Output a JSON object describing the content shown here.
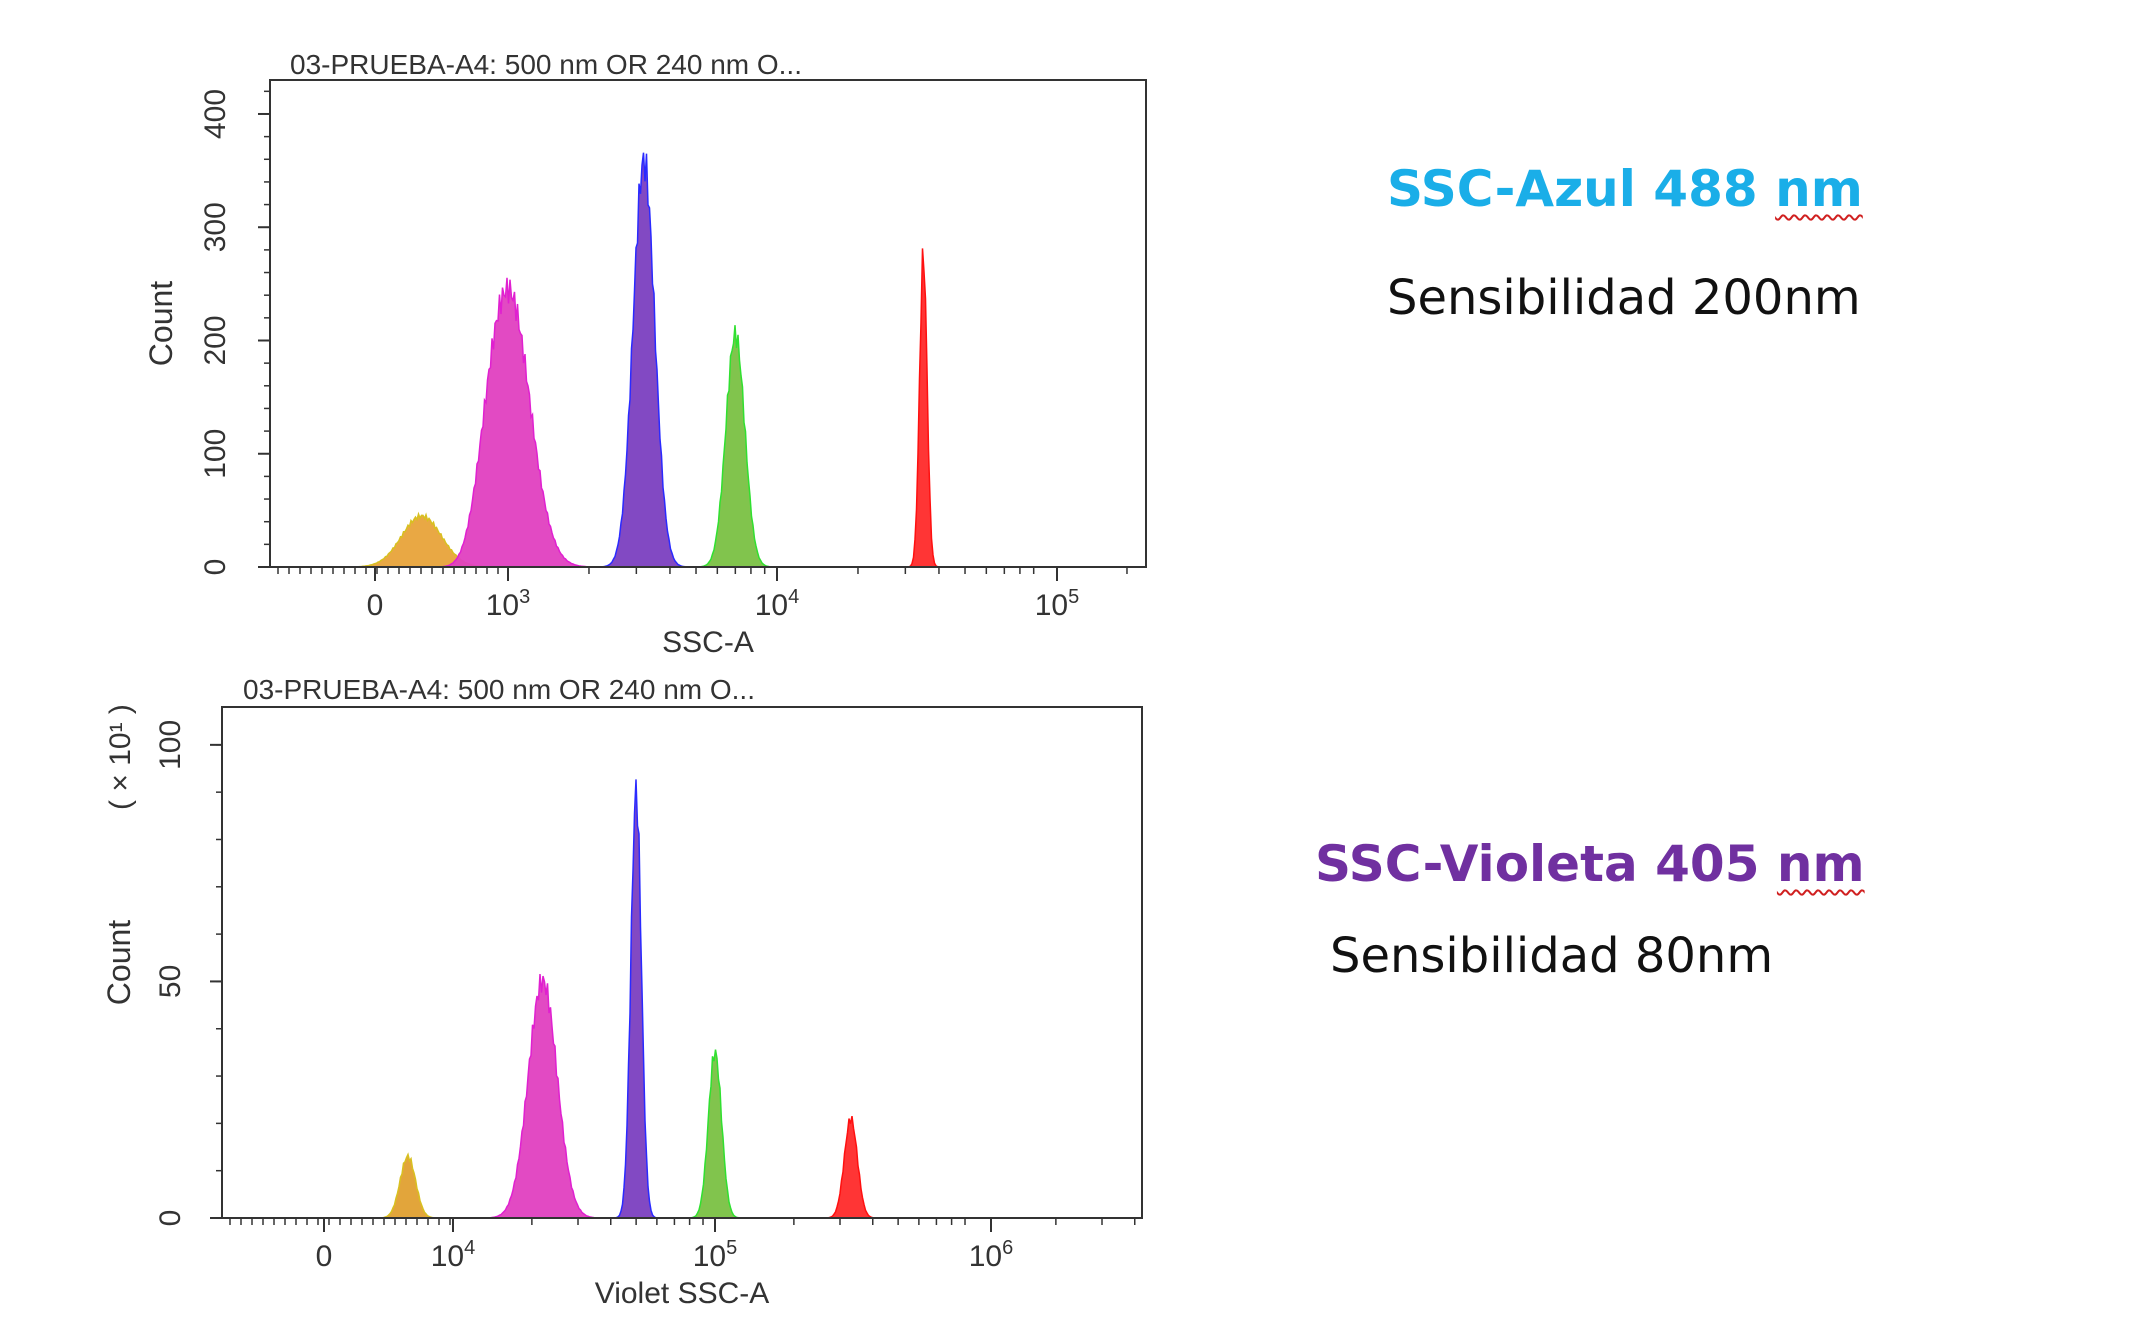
{
  "chart_data": [
    {
      "type": "histogram",
      "title": "03-PRUEBA-A4: 500 nm OR 240 nm O...",
      "xlabel": "SSC-A",
      "ylabel": "Count",
      "x_scale": "biexponential",
      "x_ticks": [
        {
          "value": 0,
          "label": "0"
        },
        {
          "value": 1000,
          "base": "10",
          "exp": "3"
        },
        {
          "value": 10000,
          "base": "10",
          "exp": "4"
        },
        {
          "value": 100000,
          "base": "10",
          "exp": "5"
        }
      ],
      "y_ticks": [
        0,
        100,
        200,
        300,
        400
      ],
      "ylim": [
        0,
        430
      ],
      "series": [
        {
          "color": "#e8a33a",
          "stroke": "#d8c020",
          "center": 350,
          "spread": 150,
          "spread_unit": "linear",
          "peak": 45
        },
        {
          "color": "#e040c0",
          "stroke": "#e020d0",
          "center": 1000,
          "spread": 0.08,
          "spread_unit": "decades",
          "peak": 245
        },
        {
          "color": "#7b3fc0",
          "stroke": "#2a2aff",
          "center": 3200,
          "spread": 0.04,
          "spread_unit": "decades",
          "peak": 358
        },
        {
          "color": "#7ac143",
          "stroke": "#30e030",
          "center": 7000,
          "spread": 0.035,
          "spread_unit": "decades",
          "peak": 205
        },
        {
          "color": "#ff2a2a",
          "stroke": "#ff1010",
          "center": 35000,
          "spread": 0.014,
          "spread_unit": "decades",
          "peak": 275
        }
      ]
    },
    {
      "type": "histogram",
      "title": "03-PRUEBA-A4: 500 nm OR 240 nm O...",
      "xlabel": "Violet SSC-A",
      "ylabel": "Count",
      "y_multiplier": "( × 10¹ )",
      "x_scale": "biexponential",
      "x_ticks": [
        {
          "value": 0,
          "label": "0"
        },
        {
          "value": 10000,
          "base": "10",
          "exp": "4"
        },
        {
          "value": 100000,
          "base": "10",
          "exp": "5"
        },
        {
          "value": 1000000,
          "base": "10",
          "exp": "6"
        }
      ],
      "y_ticks": [
        0,
        50,
        100
      ],
      "ylim": [
        0,
        108
      ],
      "series": [
        {
          "color": "#e0a030",
          "stroke": "#d8c020",
          "center": 6500,
          "spread": 600,
          "spread_unit": "linear",
          "peak": 13
        },
        {
          "color": "#e040c0",
          "stroke": "#e020d0",
          "center": 22000,
          "spread": 0.055,
          "spread_unit": "decades",
          "peak": 50
        },
        {
          "color": "#7b3fc0",
          "stroke": "#2a2aff",
          "center": 50000,
          "spread": 0.02,
          "spread_unit": "decades",
          "peak": 90
        },
        {
          "color": "#7ac143",
          "stroke": "#30e030",
          "center": 100000,
          "spread": 0.025,
          "spread_unit": "decades",
          "peak": 35
        },
        {
          "color": "#ff2a2a",
          "stroke": "#ff1010",
          "center": 330000,
          "spread": 0.025,
          "spread_unit": "decades",
          "peak": 21
        }
      ]
    }
  ],
  "annotations": {
    "blue": {
      "prefix": "SSC-Azul 488 ",
      "unit": "nm",
      "color": "#1aaee8",
      "sensitivity": "Sensibilidad 200nm"
    },
    "violet": {
      "prefix": "SSC-Violeta 405 ",
      "unit": "nm",
      "color": "#7030a0",
      "sensitivity": "Sensibilidad 80nm"
    }
  }
}
